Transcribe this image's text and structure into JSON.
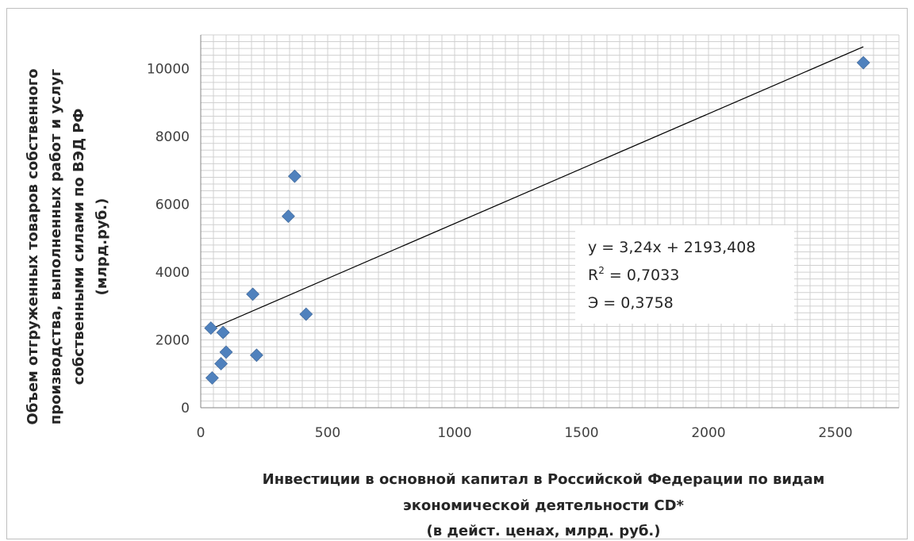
{
  "chart_data": {
    "type": "scatter",
    "xlabel_lines": [
      "Инвестиции в основной капитал в Российской Федерации  по видам",
      "экономической деятельности CD*",
      "(в дейст. ценах, млрд. руб.)"
    ],
    "ylabel_lines": [
      "Объем отгруженных товаров собственного",
      "производства, выполненных работ и услуг",
      "собственными силами по ВЭД  РФ",
      "(млрд.руб.)"
    ],
    "xlim": [
      0,
      2750
    ],
    "ylim": [
      0,
      11000
    ],
    "x_ticks": [
      0,
      500,
      1000,
      1500,
      2000,
      2500
    ],
    "y_ticks": [
      0,
      2000,
      4000,
      6000,
      8000,
      10000
    ],
    "grid": true,
    "marker_color": "#4f81bd",
    "points": [
      {
        "x": 40,
        "y": 2350
      },
      {
        "x": 45,
        "y": 880
      },
      {
        "x": 80,
        "y": 1300
      },
      {
        "x": 88,
        "y": 2220
      },
      {
        "x": 100,
        "y": 1640
      },
      {
        "x": 205,
        "y": 3350
      },
      {
        "x": 220,
        "y": 1550
      },
      {
        "x": 345,
        "y": 5650
      },
      {
        "x": 370,
        "y": 6830
      },
      {
        "x": 415,
        "y": 2760
      },
      {
        "x": 2610,
        "y": 10180
      }
    ],
    "trendline": {
      "slope": 3.24,
      "intercept": 2193.408,
      "x_range": [
        40,
        2610
      ],
      "color": "#000000"
    },
    "annotation": {
      "equation": "y = 3,24x + 2193,408",
      "r2_prefix": "R",
      "r2_sup": "2",
      "r2_value": " = 0,7033",
      "elasticity": "Э = 0,3758"
    }
  }
}
